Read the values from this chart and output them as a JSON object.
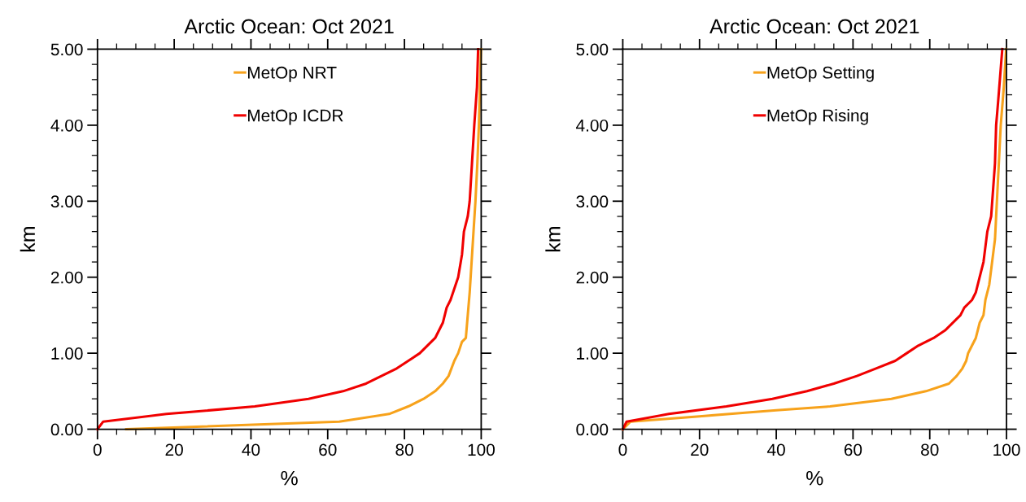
{
  "chart_data": [
    {
      "type": "line",
      "title": "Arctic Ocean: Oct 2021",
      "xlabel": "%",
      "ylabel": "km",
      "xlim": [
        0,
        100
      ],
      "xticks": [
        0,
        20,
        40,
        60,
        80,
        100
      ],
      "ylim": [
        0,
        5
      ],
      "yticks": [
        {
          "value": 0,
          "label": "0.00"
        },
        {
          "value": 1,
          "label": "1.00"
        },
        {
          "value": 2,
          "label": "2.00"
        },
        {
          "value": 3,
          "label": "3.00"
        },
        {
          "value": 4,
          "label": "4.00"
        },
        {
          "value": 5,
          "label": "5.00"
        }
      ],
      "legend": "top",
      "grid": false,
      "marker": "none",
      "line_style": "solid",
      "series": [
        {
          "name": "MetOp NRT",
          "color": "#f7a21b",
          "x": [
            7.5,
            63,
            76,
            81,
            85,
            88,
            90,
            91.5,
            93,
            94,
            95,
            96,
            96.5,
            97,
            97.5,
            98,
            98.5,
            99,
            99.4,
            99.95
          ],
          "values": [
            0,
            0.1,
            0.2,
            0.3,
            0.4,
            0.5,
            0.6,
            0.7,
            0.9,
            1.0,
            1.15,
            1.2,
            1.5,
            1.8,
            2.2,
            2.6,
            3.0,
            3.5,
            4.0,
            5.0
          ]
        },
        {
          "name": "MetOp ICDR",
          "color": "#f00000",
          "x": [
            0,
            1.5,
            18,
            41,
            55,
            64,
            70,
            74,
            78,
            81,
            84,
            88,
            90,
            91,
            92,
            93,
            94,
            95,
            95.5,
            96.5,
            97,
            97.6,
            98.2,
            98.9,
            99.2
          ],
          "values": [
            0,
            0.1,
            0.2,
            0.3,
            0.4,
            0.5,
            0.6,
            0.7,
            0.8,
            0.9,
            1.0,
            1.2,
            1.4,
            1.6,
            1.7,
            1.85,
            2.0,
            2.3,
            2.6,
            2.8,
            3.0,
            3.5,
            4.0,
            4.5,
            5.0
          ]
        }
      ]
    },
    {
      "type": "line",
      "title": "Arctic Ocean: Oct 2021",
      "xlabel": "%",
      "ylabel": "km",
      "xlim": [
        0,
        100
      ],
      "xticks": [
        0,
        20,
        40,
        60,
        80,
        100
      ],
      "ylim": [
        0,
        5
      ],
      "yticks": [
        {
          "value": 0,
          "label": "0.00"
        },
        {
          "value": 1,
          "label": "1.00"
        },
        {
          "value": 2,
          "label": "2.00"
        },
        {
          "value": 3,
          "label": "3.00"
        },
        {
          "value": 4,
          "label": "4.00"
        },
        {
          "value": 5,
          "label": "5.00"
        }
      ],
      "legend": "top",
      "grid": false,
      "marker": "none",
      "line_style": "solid",
      "series": [
        {
          "name": "MetOp Setting",
          "color": "#f7a21b",
          "x": [
            0,
            2,
            20,
            40,
            54,
            70,
            79,
            85,
            87,
            88.5,
            89.5,
            90,
            91,
            92,
            93,
            94,
            94.5,
            95.5,
            96,
            97,
            97.5,
            98,
            98.5,
            99.3,
            99.9
          ],
          "values": [
            0,
            0.1,
            0.17,
            0.25,
            0.3,
            0.4,
            0.5,
            0.6,
            0.7,
            0.8,
            0.9,
            1.0,
            1.1,
            1.2,
            1.4,
            1.5,
            1.7,
            1.9,
            2.1,
            2.5,
            3.0,
            3.5,
            4.0,
            4.5,
            5.0
          ]
        },
        {
          "name": "MetOp Rising",
          "color": "#f00000",
          "x": [
            0,
            1,
            12,
            27,
            39,
            48,
            55,
            61,
            66,
            71,
            74,
            77,
            81,
            84,
            88,
            89,
            91,
            92,
            93,
            94,
            94.5,
            95,
            96,
            97,
            97.3,
            97.8,
            98.9
          ],
          "values": [
            0,
            0.1,
            0.2,
            0.3,
            0.4,
            0.5,
            0.6,
            0.7,
            0.8,
            0.9,
            1.0,
            1.1,
            1.2,
            1.3,
            1.5,
            1.6,
            1.7,
            1.8,
            2.0,
            2.2,
            2.4,
            2.6,
            2.8,
            3.5,
            4.0,
            4.3,
            5.0
          ]
        }
      ]
    }
  ]
}
